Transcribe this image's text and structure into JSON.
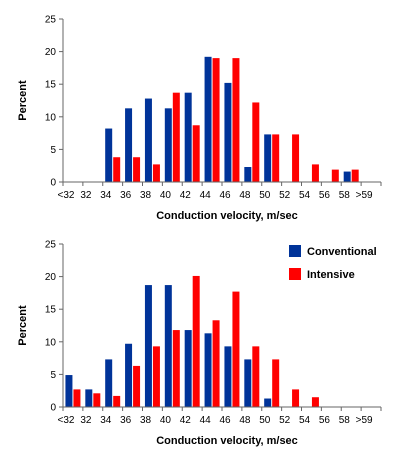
{
  "chart_data": [
    {
      "type": "bar",
      "title": "",
      "xlabel": "Conduction velocity, m/sec",
      "ylabel": "Percent",
      "ylim": [
        0,
        25
      ],
      "yticks": [
        0,
        5,
        10,
        15,
        20,
        25
      ],
      "categories": [
        "<32",
        "32",
        "34",
        "36",
        "38",
        "40",
        "42",
        "44",
        "46",
        "48",
        "50",
        "52",
        "54",
        "56",
        "58",
        ">59"
      ],
      "series": [
        {
          "name": "Conventional",
          "color": "#003399",
          "values": [
            0,
            0,
            8.2,
            11.3,
            12.8,
            11.3,
            13.7,
            19.2,
            15.2,
            2.3,
            7.3,
            0,
            0,
            0,
            1.6,
            0
          ]
        },
        {
          "name": "Intensive",
          "color": "#ff0000",
          "values": [
            0,
            0,
            3.8,
            3.8,
            2.7,
            13.7,
            8.7,
            19.0,
            19.0,
            12.2,
            7.3,
            7.3,
            2.7,
            1.9,
            1.9,
            0
          ]
        }
      ],
      "grid": false
    },
    {
      "type": "bar",
      "title": "",
      "xlabel": "Conduction velocity, m/sec",
      "ylabel": "Percent",
      "ylim": [
        0,
        25
      ],
      "yticks": [
        0,
        5,
        10,
        15,
        20,
        25
      ],
      "categories": [
        "<32",
        "32",
        "34",
        "36",
        "38",
        "40",
        "42",
        "44",
        "46",
        "48",
        "50",
        "52",
        "54",
        "56",
        "58",
        ">59"
      ],
      "series": [
        {
          "name": "Conventional",
          "color": "#003399",
          "values": [
            4.9,
            2.7,
            7.3,
            9.7,
            18.7,
            18.7,
            11.8,
            11.3,
            9.3,
            7.3,
            1.3,
            0,
            0,
            0,
            0,
            0
          ]
        },
        {
          "name": "Intensive",
          "color": "#ff0000",
          "values": [
            2.7,
            2.1,
            1.7,
            6.3,
            9.3,
            11.8,
            20.1,
            13.3,
            17.7,
            9.3,
            7.3,
            2.7,
            1.5,
            0,
            0,
            0
          ]
        }
      ],
      "legend": {
        "placement": "top-right",
        "entries": [
          "Conventional",
          "Intensive"
        ]
      },
      "grid": false
    }
  ]
}
